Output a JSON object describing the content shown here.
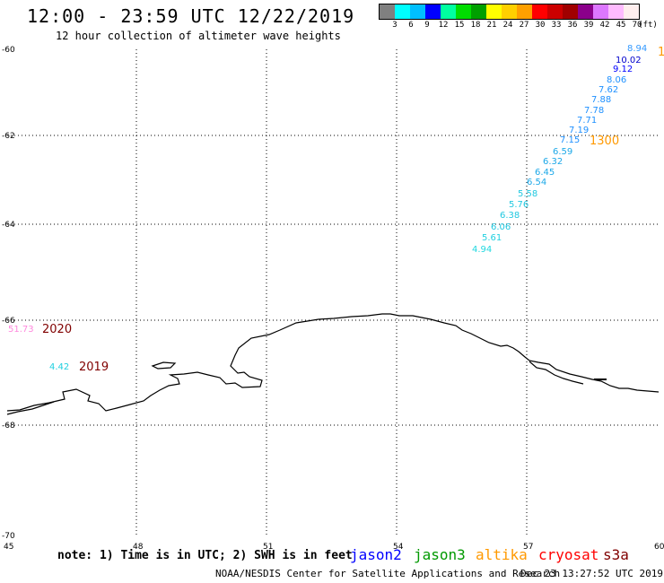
{
  "header": {
    "title": "12:00 - 23:59 UTC 12/22/2019",
    "subtitle": "12 hour collection of altimeter wave heights"
  },
  "legend": {
    "unit": "(ft)",
    "colors": [
      "#808080",
      "#00ffff",
      "#00bfff",
      "#0000ff",
      "#00ffa0",
      "#00dd00",
      "#00a000",
      "#ffff00",
      "#ffd000",
      "#ffa000",
      "#ff0000",
      "#cc0000",
      "#a00000",
      "#8b008b",
      "#dd77ff",
      "#ffbbff",
      "#ffeeee"
    ],
    "labels": [
      "3",
      "6",
      "9",
      "12",
      "15",
      "18",
      "21",
      "24",
      "27",
      "30",
      "33",
      "36",
      "39",
      "42",
      "45",
      "70"
    ]
  },
  "axes": {
    "lat_labels": [
      "-60",
      "-62",
      "-64",
      "-66",
      "-68",
      "-70"
    ],
    "lon_labels": [
      "45",
      "48",
      "51",
      "54",
      "57",
      "60"
    ]
  },
  "track": {
    "time_label": "1300",
    "time_color": "#ff9900",
    "points": [
      {
        "value": "8.94",
        "color": "#3399ff"
      },
      {
        "value": "10.02",
        "color": "#0000cc"
      },
      {
        "value": "9.12",
        "color": "#0000ff"
      },
      {
        "value": "8.06",
        "color": "#1e90ff"
      },
      {
        "value": "7.62",
        "color": "#1e90ff"
      },
      {
        "value": "7.88",
        "color": "#1e90ff"
      },
      {
        "value": "7.78",
        "color": "#1e90ff"
      },
      {
        "value": "7.71",
        "color": "#1e90ff"
      },
      {
        "value": "7.19",
        "color": "#1e90ff"
      },
      {
        "value": "7.15",
        "color": "#1e90ff"
      },
      {
        "value": "6.59",
        "color": "#1ca8e8"
      },
      {
        "value": "6.32",
        "color": "#1ca8e8"
      },
      {
        "value": "6.45",
        "color": "#1ca8e8"
      },
      {
        "value": "6.54",
        "color": "#1ca8e8"
      },
      {
        "value": "5.58",
        "color": "#20c8e0"
      },
      {
        "value": "5.76",
        "color": "#20c8e0"
      },
      {
        "value": "6.38",
        "color": "#20c8e0"
      },
      {
        "value": "6.06",
        "color": "#20c8e0"
      },
      {
        "value": "5.61",
        "color": "#20d0e0"
      },
      {
        "value": "4.94",
        "color": "#20d8e0"
      }
    ]
  },
  "edge_label": {
    "text": "1",
    "color": "#ff9900"
  },
  "year_markers": [
    {
      "value": "51.73",
      "value_color": "#ff88dd",
      "year": "2020",
      "year_color": "#800000"
    },
    {
      "value": "4.42",
      "value_color": "#20d0e0",
      "year": "2019",
      "year_color": "#800000"
    }
  ],
  "footer": {
    "note": "note: 1) Time is in UTC; 2) SWH is in feet",
    "satellites": [
      {
        "name": "jason2",
        "color": "#0000ff"
      },
      {
        "name": "jason3",
        "color": "#009900"
      },
      {
        "name": "altika",
        "color": "#ff9900"
      },
      {
        "name": "cryosat",
        "color": "#ff0000"
      },
      {
        "name": "s3a",
        "color": "#800000"
      }
    ],
    "credit": "NOAA/NESDIS Center for Satellite Applications and Research",
    "timestamp": "Dec 23 13:27:52 UTC 2019"
  }
}
